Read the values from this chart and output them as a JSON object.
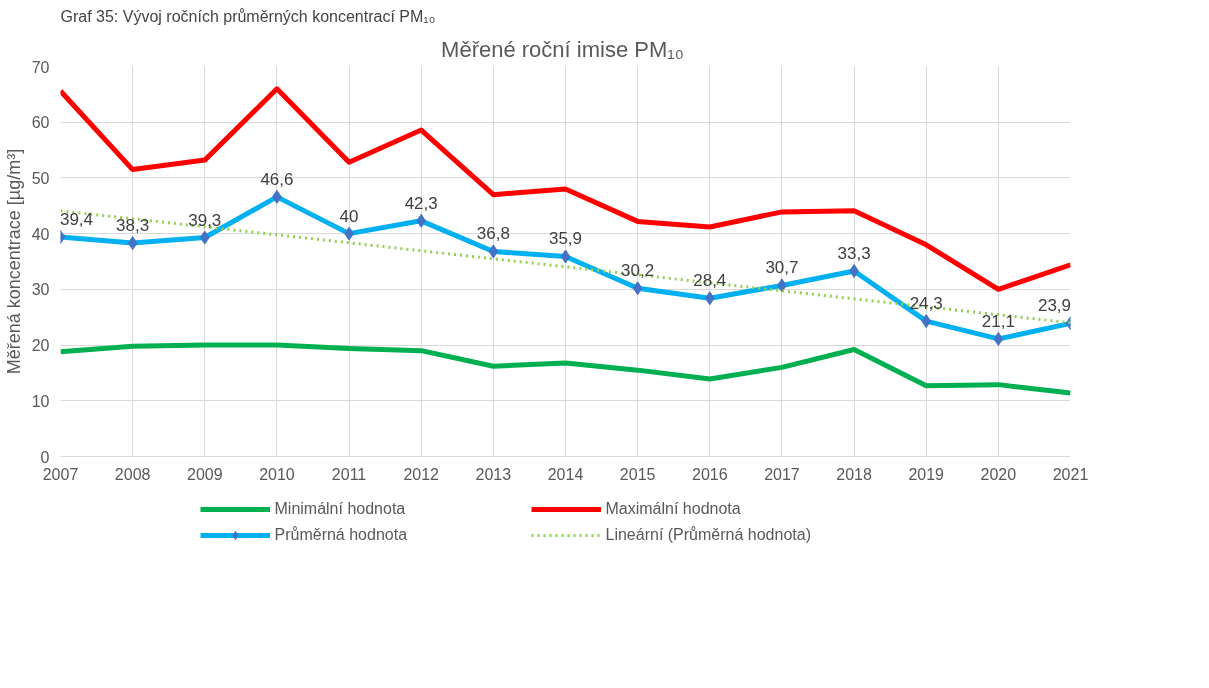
{
  "chart_data": {
    "type": "line",
    "title": "Měřené roční imise  PM₁₀",
    "annotations": [
      "Graf 35: Vývoj ročních průměrných koncentrací PM₁₀"
    ],
    "ylabel": "Měřená koncentrace [µg/m³]",
    "x": [
      2007,
      2008,
      2009,
      2010,
      2011,
      2012,
      2013,
      2014,
      2015,
      2016,
      2017,
      2018,
      2019,
      2020,
      2021
    ],
    "xlim": [
      2007,
      2021
    ],
    "xticks": [
      2007,
      2008,
      2009,
      2010,
      2011,
      2012,
      2013,
      2014,
      2015,
      2016,
      2017,
      2018,
      2019,
      2020,
      2021
    ],
    "ylim": [
      0,
      70
    ],
    "yticks": [
      0,
      10,
      20,
      30,
      40,
      50,
      60,
      70
    ],
    "grid": true,
    "legend": "bottom",
    "series": [
      {
        "name": "Minimální hodnota",
        "color": "#00b050",
        "marker": "none",
        "line_style": "solid",
        "values": [
          18.8,
          19.8,
          20.0,
          20.0,
          19.4,
          19.0,
          16.2,
          16.8,
          15.5,
          13.9,
          16.0,
          19.2,
          12.7,
          12.9,
          11.4
        ]
      },
      {
        "name": "Maximální hodnota",
        "color": "#ff0000",
        "marker": "none",
        "line_style": "solid",
        "values": [
          65.6,
          51.5,
          53.2,
          66.0,
          52.8,
          58.6,
          47.0,
          48.0,
          42.2,
          41.2,
          43.9,
          44.1,
          38.0,
          30.0,
          34.4
        ]
      },
      {
        "name": "Průměrná hodnota",
        "color": "#00b0f0",
        "marker": "diamond",
        "line_style": "solid",
        "values": [
          39.4,
          38.3,
          39.3,
          46.6,
          40,
          42.3,
          36.8,
          35.9,
          30.2,
          28.4,
          30.7,
          33.3,
          24.3,
          21.1,
          23.9
        ],
        "value_labels": [
          "39,4",
          "38,3",
          "39,3",
          "46,6",
          "40",
          "42,3",
          "36,8",
          "35,9",
          "30,2",
          "28,4",
          "30,7",
          "33,3",
          "24,3",
          "21,1",
          "23,9"
        ]
      },
      {
        "name": "Lineární (Průměrná hodnota)",
        "color": "#92d050",
        "marker": "none",
        "line_style": "dotted",
        "x": [
          2007,
          2021
        ],
        "values": [
          44.1,
          24.0
        ]
      }
    ]
  }
}
